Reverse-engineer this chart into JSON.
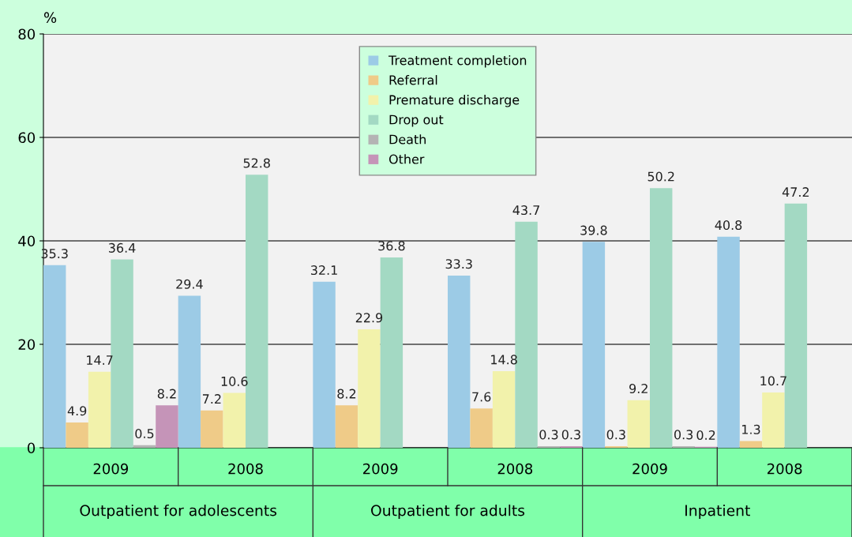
{
  "chart_data": {
    "type": "bar",
    "ylabel": "%",
    "categories": [
      "2009",
      "2008",
      "2009",
      "2008",
      "2009",
      "2008"
    ],
    "series": [
      {
        "name": "Treatment completion",
        "color": "#9ccbe6",
        "values": [
          35.3,
          29.4,
          32.1,
          33.3,
          39.8,
          40.8
        ]
      },
      {
        "name": "Referral",
        "color": "#efcb88",
        "values": [
          4.9,
          7.2,
          8.2,
          7.6,
          0.3,
          1.3
        ]
      },
      {
        "name": "Premature discharge",
        "color": "#f2f2ab",
        "values": [
          14.7,
          10.6,
          22.9,
          14.8,
          9.2,
          10.7
        ]
      },
      {
        "name": "Drop out",
        "color": "#a3d9c3",
        "values": [
          36.4,
          52.8,
          36.8,
          43.7,
          50.2,
          47.2
        ]
      },
      {
        "name": "Death",
        "color": "#b4b4b4",
        "values": [
          0.5,
          null,
          null,
          0.3,
          0.3,
          null
        ]
      },
      {
        "name": "Other",
        "color": "#c594b8",
        "values": [
          8.2,
          null,
          null,
          0.3,
          0.2,
          null
        ]
      }
    ],
    "annotations": [
      "Outpatient for adolescents",
      "Outpatient for adults",
      "Inpatient"
    ],
    "ylim": [
      0,
      80
    ],
    "yticks": [
      0,
      20,
      40,
      60,
      80
    ],
    "grid": "y",
    "legend": "top",
    "data_labels": true
  }
}
